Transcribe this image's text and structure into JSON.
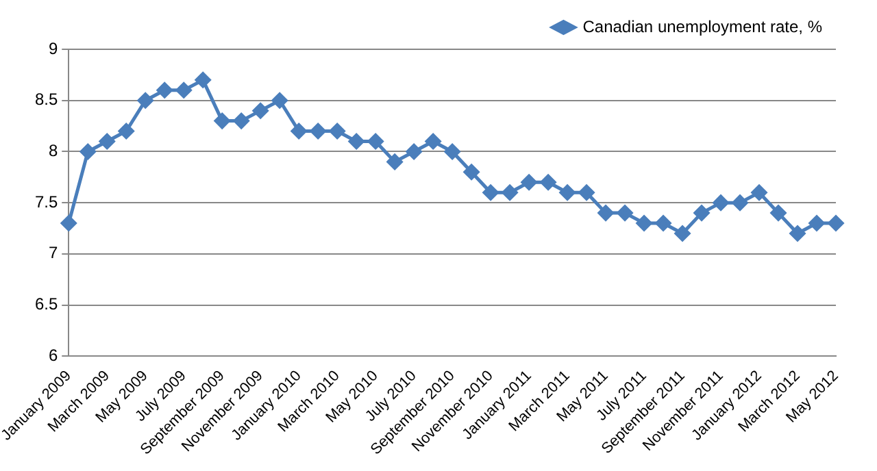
{
  "chart_data": {
    "type": "line",
    "categories": [
      "January 2009",
      null,
      "March 2009",
      null,
      "May 2009",
      null,
      "July 2009",
      null,
      "September 2009",
      null,
      "November 2009",
      null,
      "January 2010",
      null,
      "March 2010",
      null,
      "May 2010",
      null,
      "July 2010",
      null,
      "September 2010",
      null,
      "November 2010",
      null,
      "January 2011",
      null,
      "March 2011",
      null,
      "May 2011",
      null,
      "July 2011",
      null,
      "September 2011",
      null,
      "November 2011",
      null,
      "January 2012",
      null,
      "March 2012",
      null,
      "May 2012"
    ],
    "series": [
      {
        "name": "Canadian unemployment rate, %",
        "color": "#4a7ebb",
        "values": [
          7.3,
          8.0,
          8.1,
          8.2,
          8.5,
          8.6,
          8.6,
          8.7,
          8.3,
          8.3,
          8.4,
          8.5,
          8.2,
          8.2,
          8.2,
          8.1,
          8.1,
          7.9,
          8.0,
          8.1,
          8.0,
          7.8,
          7.6,
          7.6,
          7.7,
          7.7,
          7.6,
          7.6,
          7.4,
          7.4,
          7.3,
          7.3,
          7.2,
          7.4,
          7.5,
          7.5,
          7.6,
          7.4,
          7.2,
          7.3,
          7.3
        ]
      }
    ],
    "ylim": [
      6,
      9
    ],
    "yticks": [
      6,
      6.5,
      7,
      7.5,
      8,
      8.5,
      9
    ],
    "grid": "y",
    "legend": "top right",
    "marker": "diamond",
    "line_style": "solid"
  }
}
